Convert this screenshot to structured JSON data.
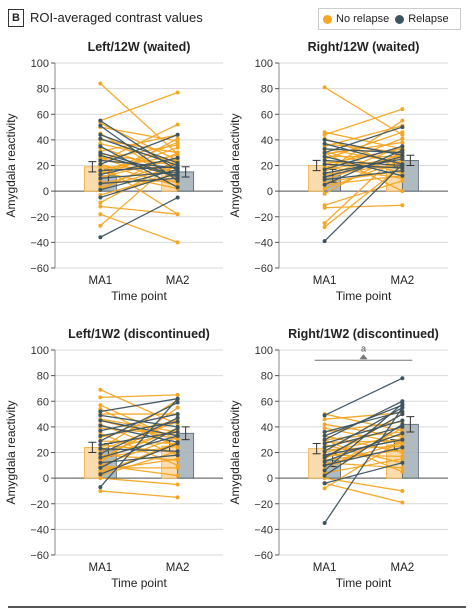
{
  "header": {
    "panel_letter": "B",
    "title": "ROI-averaged contrast values"
  },
  "legend": [
    {
      "label": "No relapse",
      "color": "#f5a623"
    },
    {
      "label": "Relapse",
      "color": "#3d5561"
    }
  ],
  "colors": {
    "no_relapse": "#f5a623",
    "relapse": "#3d5561",
    "bar_no_relapse": "#fbd9a6",
    "bar_relapse": "#a7b4bb",
    "grid": "#d9d9d9"
  },
  "chart_data": [
    {
      "type": "bar",
      "title": "Left/12W (waited)",
      "xlabel": "Time point",
      "ylabel": "Amygdala reactivity",
      "categories": [
        "MA1",
        "MA2"
      ],
      "ylim": [
        -60,
        100
      ],
      "yticks": [
        -60,
        -40,
        -20,
        0,
        20,
        40,
        60,
        80,
        100
      ],
      "grid": true,
      "annotation": "",
      "bars": [
        {
          "group": "No relapse",
          "values": [
            19,
            16
          ],
          "errors": [
            4,
            4
          ]
        },
        {
          "group": "Relapse",
          "values": [
            12,
            15
          ],
          "errors": [
            5,
            4
          ]
        }
      ],
      "series": [
        {
          "name": "No relapse",
          "pairs": [
            [
              84,
              29
            ],
            [
              55,
              77
            ],
            [
              53,
              24
            ],
            [
              50,
              39
            ],
            [
              45,
              9
            ],
            [
              40,
              30
            ],
            [
              37,
              23
            ],
            [
              34,
              14
            ],
            [
              31,
              44
            ],
            [
              29,
              20
            ],
            [
              27,
              12
            ],
            [
              25,
              36
            ],
            [
              23,
              52
            ],
            [
              21,
              4
            ],
            [
              19,
              18
            ],
            [
              17,
              28
            ],
            [
              15,
              2
            ],
            [
              13,
              34
            ],
            [
              11,
              25
            ],
            [
              9,
              41
            ],
            [
              7,
              8
            ],
            [
              5,
              22
            ],
            [
              3,
              19
            ],
            [
              1,
              30
            ],
            [
              -3,
              14
            ],
            [
              -9,
              23
            ],
            [
              -12,
              -18
            ],
            [
              -18,
              -40
            ],
            [
              -27,
              26
            ],
            [
              20,
              -18
            ],
            [
              14,
              38
            ],
            [
              26,
              6
            ]
          ]
        },
        {
          "name": "Relapse",
          "pairs": [
            [
              55,
              16
            ],
            [
              51,
              8
            ],
            [
              44,
              22
            ],
            [
              41,
              20
            ],
            [
              35,
              3
            ],
            [
              30,
              12
            ],
            [
              28,
              11
            ],
            [
              24,
              18
            ],
            [
              21,
              44
            ],
            [
              16,
              19
            ],
            [
              13,
              26
            ],
            [
              10,
              15
            ],
            [
              6,
              10
            ],
            [
              1,
              17
            ],
            [
              -5,
              14
            ],
            [
              -36,
              -5
            ]
          ]
        }
      ]
    },
    {
      "type": "bar",
      "title": "Right/12W (waited)",
      "xlabel": "Time point",
      "ylabel": "Amygdala reactivity",
      "categories": [
        "MA1",
        "MA2"
      ],
      "ylim": [
        -60,
        100
      ],
      "yticks": [
        -60,
        -40,
        -20,
        0,
        20,
        40,
        60,
        80,
        100
      ],
      "grid": true,
      "annotation": "",
      "bars": [
        {
          "group": "No relapse",
          "values": [
            20,
            23
          ],
          "errors": [
            4,
            4
          ]
        },
        {
          "group": "Relapse",
          "values": [
            12,
            24
          ],
          "errors": [
            5,
            4
          ]
        }
      ],
      "series": [
        {
          "name": "No relapse",
          "pairs": [
            [
              81,
              44
            ],
            [
              46,
              33
            ],
            [
              44,
              64
            ],
            [
              41,
              20
            ],
            [
              37,
              30
            ],
            [
              35,
              51
            ],
            [
              33,
              22
            ],
            [
              31,
              14
            ],
            [
              29,
              38
            ],
            [
              27,
              27
            ],
            [
              25,
              46
            ],
            [
              23,
              18
            ],
            [
              21,
              33
            ],
            [
              19,
              10
            ],
            [
              17,
              26
            ],
            [
              15,
              55
            ],
            [
              13,
              21
            ],
            [
              11,
              35
            ],
            [
              9,
              29
            ],
            [
              7,
              16
            ],
            [
              5,
              12
            ],
            [
              2,
              24
            ],
            [
              -2,
              31
            ],
            [
              -11,
              8
            ],
            [
              -13,
              -11
            ],
            [
              -25,
              32
            ],
            [
              -28,
              20
            ],
            [
              30,
              0
            ],
            [
              18,
              41
            ]
          ]
        },
        {
          "name": "Relapse",
          "pairs": [
            [
              40,
              28
            ],
            [
              37,
              21
            ],
            [
              33,
              30
            ],
            [
              30,
              50
            ],
            [
              27,
              12
            ],
            [
              24,
              20
            ],
            [
              21,
              18
            ],
            [
              17,
              35
            ],
            [
              14,
              25
            ],
            [
              11,
              27
            ],
            [
              9,
              16
            ],
            [
              5,
              32
            ],
            [
              -39,
              21
            ]
          ]
        }
      ]
    },
    {
      "type": "bar",
      "title": "Left/1W2 (discontinued)",
      "xlabel": "Time point",
      "ylabel": "Amygdala reactivity",
      "categories": [
        "MA1",
        "MA2"
      ],
      "ylim": [
        -60,
        100
      ],
      "yticks": [
        -60,
        -40,
        -20,
        0,
        20,
        40,
        60,
        80,
        100
      ],
      "grid": true,
      "annotation": "",
      "bars": [
        {
          "group": "No relapse",
          "values": [
            24,
            25
          ],
          "errors": [
            4,
            4
          ]
        },
        {
          "group": "Relapse",
          "values": [
            22,
            35
          ],
          "errors": [
            5,
            5
          ]
        }
      ],
      "series": [
        {
          "name": "No relapse",
          "pairs": [
            [
              69,
              42
            ],
            [
              63,
              65
            ],
            [
              57,
              30
            ],
            [
              54,
              24
            ],
            [
              50,
              50
            ],
            [
              46,
              36
            ],
            [
              42,
              18
            ],
            [
              39,
              34
            ],
            [
              35,
              10
            ],
            [
              32,
              45
            ],
            [
              29,
              27
            ],
            [
              26,
              20
            ],
            [
              23,
              61
            ],
            [
              20,
              37
            ],
            [
              18,
              14
            ],
            [
              16,
              25
            ],
            [
              14,
              39
            ],
            [
              12,
              55
            ],
            [
              10,
              32
            ],
            [
              8,
              8
            ],
            [
              6,
              15
            ],
            [
              4,
              28
            ],
            [
              2,
              21
            ],
            [
              0,
              -5
            ],
            [
              -10,
              -15
            ],
            [
              10,
              2
            ],
            [
              22,
              44
            ],
            [
              45,
              30
            ],
            [
              15,
              47
            ]
          ]
        },
        {
          "name": "Relapse",
          "pairs": [
            [
              52,
              62
            ],
            [
              49,
              40
            ],
            [
              45,
              33
            ],
            [
              41,
              28
            ],
            [
              37,
              50
            ],
            [
              33,
              44
            ],
            [
              29,
              59
            ],
            [
              26,
              36
            ],
            [
              23,
              21
            ],
            [
              19,
              47
            ],
            [
              16,
              33
            ],
            [
              12,
              18
            ],
            [
              8,
              39
            ],
            [
              3,
              27
            ],
            [
              -7,
              62
            ]
          ]
        }
      ]
    },
    {
      "type": "bar",
      "title": "Right/1W2 (discontinued)",
      "xlabel": "Time point",
      "ylabel": "Amygdala reactivity",
      "categories": [
        "MA1",
        "MA2"
      ],
      "ylim": [
        -60,
        100
      ],
      "yticks": [
        -60,
        -40,
        -20,
        0,
        20,
        40,
        60,
        80,
        100
      ],
      "grid": true,
      "annotation": "a",
      "bars": [
        {
          "group": "No relapse",
          "values": [
            23,
            26
          ],
          "errors": [
            4,
            4
          ]
        },
        {
          "group": "Relapse",
          "values": [
            14,
            42
          ],
          "errors": [
            5,
            6
          ]
        }
      ],
      "series": [
        {
          "name": "No relapse",
          "pairs": [
            [
              50,
              37
            ],
            [
              46,
              51
            ],
            [
              42,
              32
            ],
            [
              39,
              27
            ],
            [
              36,
              44
            ],
            [
              33,
              20
            ],
            [
              30,
              36
            ],
            [
              28,
              29
            ],
            [
              26,
              12
            ],
            [
              24,
              40
            ],
            [
              22,
              25
            ],
            [
              20,
              34
            ],
            [
              18,
              17
            ],
            [
              16,
              31
            ],
            [
              14,
              22
            ],
            [
              12,
              8
            ],
            [
              10,
              28
            ],
            [
              7,
              39
            ],
            [
              4,
              15
            ],
            [
              0,
              -10
            ],
            [
              -4,
              -19
            ],
            [
              -8,
              30
            ],
            [
              15,
              50
            ],
            [
              30,
              5
            ]
          ]
        },
        {
          "name": "Relapse",
          "pairs": [
            [
              49,
              78
            ],
            [
              36,
              52
            ],
            [
              33,
              57
            ],
            [
              30,
              60
            ],
            [
              27,
              45
            ],
            [
              24,
              40
            ],
            [
              21,
              55
            ],
            [
              18,
              30
            ],
            [
              16,
              50
            ],
            [
              13,
              35
            ],
            [
              10,
              24
            ],
            [
              6,
              58
            ],
            [
              2,
              42
            ],
            [
              -4,
              12
            ],
            [
              -35,
              55
            ]
          ]
        }
      ]
    }
  ]
}
